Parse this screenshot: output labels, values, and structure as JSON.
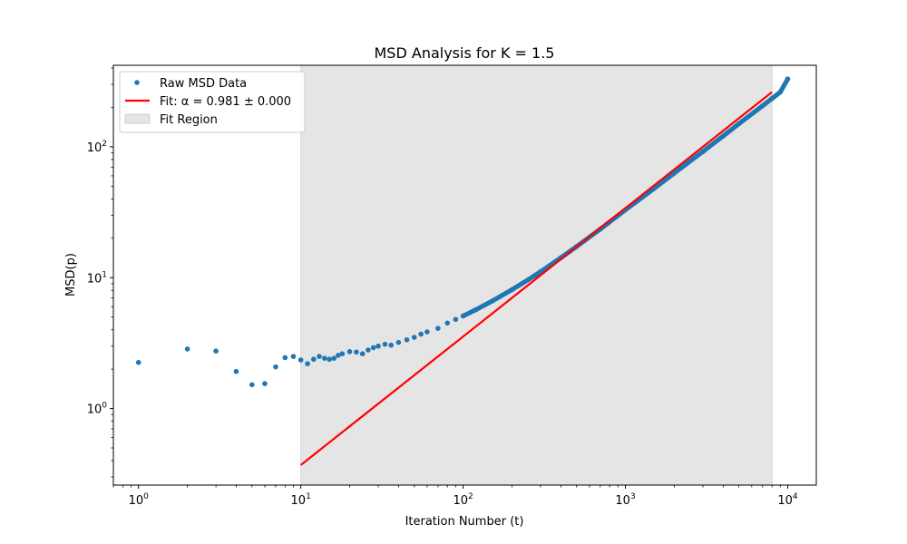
{
  "chart_data": {
    "type": "scatter",
    "title": "MSD Analysis for K = 1.5",
    "xlabel": "Iteration Number (t)",
    "ylabel": "MSD(p)",
    "xscale": "log",
    "yscale": "log",
    "xlim": [
      0.7,
      15000
    ],
    "ylim": [
      0.26,
      420
    ],
    "x_ticks": [
      {
        "value": 1,
        "base": "10",
        "exp": "0"
      },
      {
        "value": 10,
        "base": "10",
        "exp": "1"
      },
      {
        "value": 100,
        "base": "10",
        "exp": "2"
      },
      {
        "value": 1000,
        "base": "10",
        "exp": "3"
      },
      {
        "value": 10000,
        "base": "10",
        "exp": "4"
      }
    ],
    "y_ticks": [
      {
        "value": 1,
        "base": "10",
        "exp": "0"
      },
      {
        "value": 10,
        "base": "10",
        "exp": "1"
      },
      {
        "value": 100,
        "base": "10",
        "exp": "2"
      }
    ],
    "grid": false,
    "legend_position": "top-left",
    "fit_region": {
      "x_start": 10,
      "x_end": 8000,
      "label": "Fit Region",
      "color": "#d3d3d3"
    },
    "series": [
      {
        "name": "Raw MSD Data",
        "kind": "markers",
        "color": "#1f77b4",
        "points": [
          [
            1,
            2.25
          ],
          [
            2,
            2.85
          ],
          [
            3,
            2.75
          ],
          [
            4,
            1.92
          ],
          [
            5,
            1.52
          ],
          [
            6,
            1.55
          ],
          [
            7,
            2.08
          ],
          [
            8,
            2.45
          ],
          [
            9,
            2.5
          ],
          [
            10,
            2.35
          ],
          [
            11,
            2.2
          ],
          [
            12,
            2.38
          ],
          [
            13,
            2.5
          ],
          [
            14,
            2.42
          ],
          [
            15,
            2.38
          ],
          [
            16,
            2.42
          ],
          [
            17,
            2.55
          ],
          [
            18,
            2.62
          ],
          [
            20,
            2.72
          ],
          [
            22,
            2.7
          ],
          [
            24,
            2.62
          ],
          [
            26,
            2.8
          ],
          [
            28,
            2.92
          ],
          [
            30,
            3.0
          ],
          [
            33,
            3.1
          ],
          [
            36,
            3.05
          ],
          [
            40,
            3.2
          ],
          [
            45,
            3.35
          ],
          [
            50,
            3.5
          ],
          [
            55,
            3.7
          ],
          [
            60,
            3.85
          ],
          [
            70,
            4.1
          ],
          [
            80,
            4.5
          ],
          [
            90,
            4.8
          ],
          [
            100,
            5.1
          ],
          [
            120,
            5.7
          ],
          [
            150,
            6.6
          ],
          [
            200,
            8.1
          ],
          [
            250,
            9.6
          ],
          [
            300,
            11.1
          ],
          [
            400,
            14.2
          ],
          [
            500,
            17.3
          ],
          [
            700,
            23.5
          ],
          [
            1000,
            33
          ],
          [
            1500,
            48
          ],
          [
            2000,
            63
          ],
          [
            3000,
            92
          ],
          [
            4000,
            121
          ],
          [
            5000,
            150
          ],
          [
            7000,
            206
          ],
          [
            8000,
            234
          ],
          [
            9000,
            262
          ],
          [
            10000,
            330
          ]
        ]
      },
      {
        "name": "Fit: α = 0.981 ± 0.000",
        "kind": "line",
        "color": "#ff0000",
        "points": [
          [
            10,
            0.37
          ],
          [
            8000,
            262
          ]
        ]
      }
    ]
  }
}
